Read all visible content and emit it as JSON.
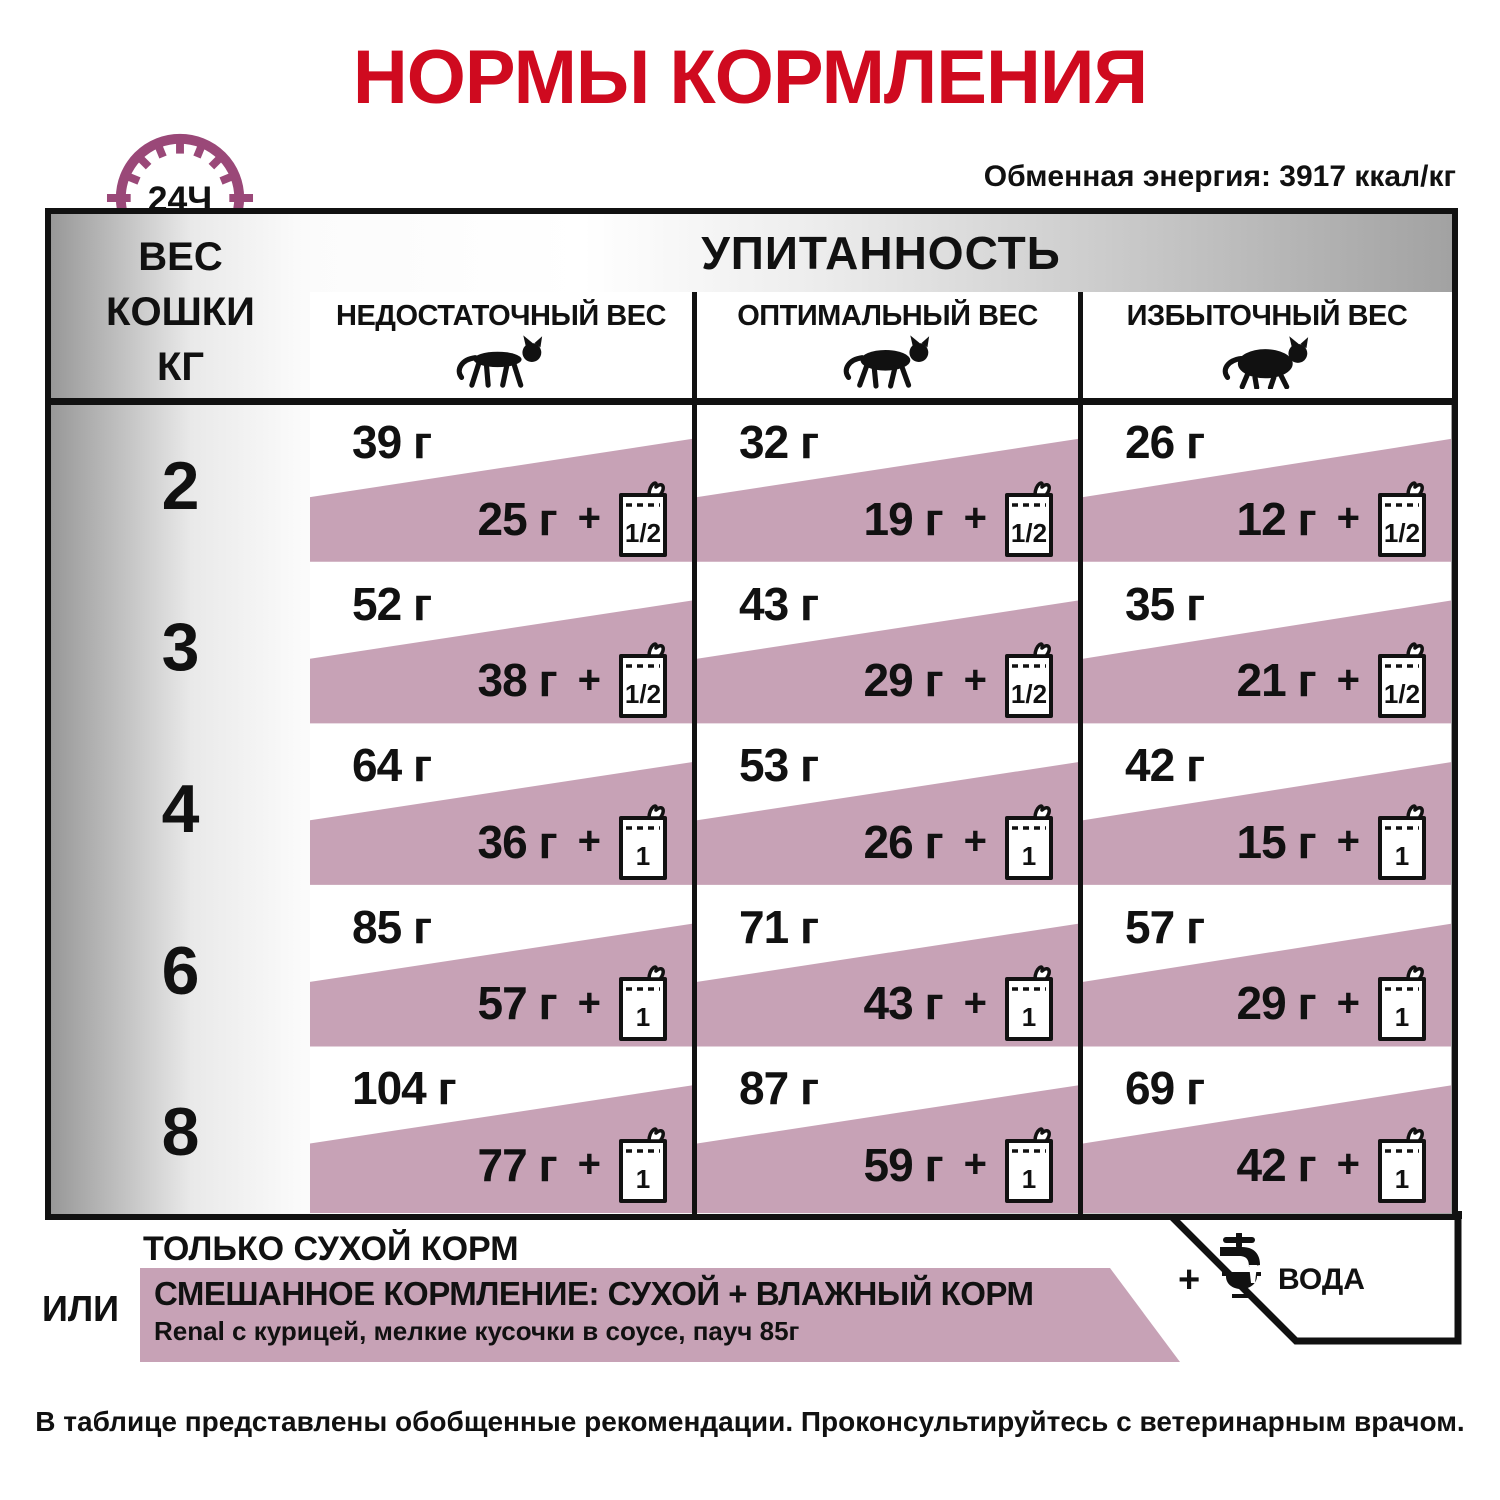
{
  "page": {
    "title": "НОРМЫ КОРМЛЕНИЯ",
    "energy_label": "Обменная энергия: 3917 ккал/кг",
    "clock_label": "24Ч",
    "footer": "В таблице представлены обобщенные рекомендации. Проконсультируйтесь с ветеринарным врачом."
  },
  "table": {
    "weight_header_lines": [
      "ВЕС",
      "КОШКИ",
      "КГ"
    ],
    "condition_header": "УПИТАННОСТЬ",
    "plus_sign": "+",
    "columns": [
      {
        "label": "НЕДОСТАТОЧНЫЙ ВЕС",
        "icon": "cat-underweight-icon"
      },
      {
        "label": "ОПТИМАЛЬНЫЙ ВЕС",
        "icon": "cat-optimal-icon"
      },
      {
        "label": "ИЗБЫТОЧНЫЙ ВЕС",
        "icon": "cat-overweight-icon"
      }
    ],
    "rows": [
      {
        "weight": "2",
        "cells": [
          {
            "dry": "39 г",
            "mixed": "25 г",
            "pouch": "1/2"
          },
          {
            "dry": "32 г",
            "mixed": "19 г",
            "pouch": "1/2"
          },
          {
            "dry": "26 г",
            "mixed": "12 г",
            "pouch": "1/2"
          }
        ]
      },
      {
        "weight": "3",
        "cells": [
          {
            "dry": "52 г",
            "mixed": "38 г",
            "pouch": "1/2"
          },
          {
            "dry": "43 г",
            "mixed": "29 г",
            "pouch": "1/2"
          },
          {
            "dry": "35 г",
            "mixed": "21 г",
            "pouch": "1/2"
          }
        ]
      },
      {
        "weight": "4",
        "cells": [
          {
            "dry": "64 г",
            "mixed": "36 г",
            "pouch": "1"
          },
          {
            "dry": "53 г",
            "mixed": "26 г",
            "pouch": "1"
          },
          {
            "dry": "42 г",
            "mixed": "15 г",
            "pouch": "1"
          }
        ]
      },
      {
        "weight": "6",
        "cells": [
          {
            "dry": "85 г",
            "mixed": "57 г",
            "pouch": "1"
          },
          {
            "dry": "71 г",
            "mixed": "43 г",
            "pouch": "1"
          },
          {
            "dry": "57 г",
            "mixed": "29 г",
            "pouch": "1"
          }
        ]
      },
      {
        "weight": "8",
        "cells": [
          {
            "dry": "104 г",
            "mixed": "77 г",
            "pouch": "1"
          },
          {
            "dry": "87 г",
            "mixed": "59 г",
            "pouch": "1"
          },
          {
            "dry": "69 г",
            "mixed": "42 г",
            "pouch": "1"
          }
        ]
      }
    ]
  },
  "legend": {
    "dry_only": "ТОЛЬКО СУХОЙ КОРМ",
    "or": "ИЛИ",
    "mixed_title": "СМЕШАННОЕ КОРМЛЕНИЕ: СУХОЙ + ВЛАЖНЫЙ КОРМ",
    "mixed_subtitle": "Renal с курицей, мелкие кусочки в соусе, пауч 85г",
    "water_plus": "+",
    "water_label": "ВОДА"
  },
  "colors": {
    "accent_red": "#cf0a1f",
    "band_pink": "#c7a2b6",
    "clock_purple": "#9a4878",
    "line_black": "#111111"
  }
}
